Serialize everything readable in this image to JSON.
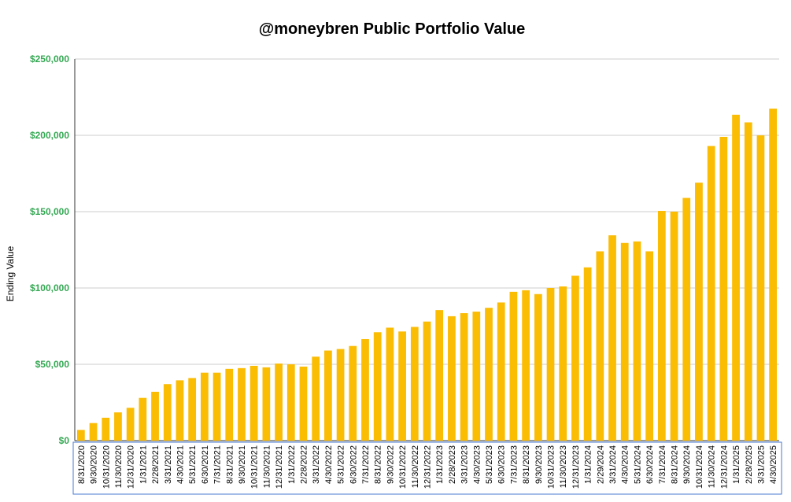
{
  "colors": {
    "bar": "#FBBC04",
    "ytick": "#34A853",
    "grid": "#CCCCCC",
    "axis": "#333333",
    "xbox": "#4A7BD0"
  },
  "chart_data": {
    "type": "bar",
    "title": "@moneybren Public Portfolio Value",
    "xlabel": "",
    "ylabel": "Ending Value",
    "ylim": [
      0,
      250000
    ],
    "yticks": [
      {
        "value": 0,
        "label": "$0"
      },
      {
        "value": 50000,
        "label": "$50,000"
      },
      {
        "value": 100000,
        "label": "$100,000"
      },
      {
        "value": 150000,
        "label": "$150,000"
      },
      {
        "value": 200000,
        "label": "$200,000"
      },
      {
        "value": 250000,
        "label": "$250,000"
      }
    ],
    "grid": true,
    "legend": "none",
    "categories": [
      "8/31/2020",
      "9/30/2020",
      "10/31/2020",
      "11/30/2020",
      "12/31/2020",
      "1/31/2021",
      "2/28/2021",
      "3/31/2021",
      "4/30/2021",
      "5/31/2021",
      "6/30/2021",
      "7/31/2021",
      "8/31/2021",
      "9/30/2021",
      "10/31/2021",
      "11/30/2021",
      "12/31/2021",
      "1/31/2022",
      "2/28/2022",
      "3/31/2022",
      "4/30/2022",
      "5/31/2022",
      "6/30/2022",
      "7/31/2022",
      "8/31/2022",
      "9/30/2022",
      "10/31/2022",
      "11/30/2022",
      "12/31/2022",
      "1/31/2023",
      "2/28/2023",
      "3/31/2023",
      "4/30/2023",
      "5/31/2023",
      "6/30/2023",
      "7/31/2023",
      "8/31/2023",
      "9/30/2023",
      "10/31/2023",
      "11/30/2023",
      "12/31/2023",
      "1/31/2024",
      "2/29/2024",
      "3/31/2024",
      "4/30/2024",
      "5/31/2024",
      "6/30/2024",
      "7/31/2024",
      "8/31/2024",
      "9/30/2024",
      "10/31/2024",
      "11/30/2024",
      "12/31/2024",
      "1/31/2025",
      "2/28/2025",
      "3/31/2025",
      "4/30/2025"
    ],
    "values": [
      7000,
      11500,
      15000,
      18500,
      21500,
      28000,
      32000,
      37000,
      39500,
      41000,
      44500,
      44500,
      47000,
      47500,
      49000,
      48000,
      50500,
      50000,
      48500,
      55000,
      59000,
      60000,
      62000,
      66500,
      71000,
      74000,
      71500,
      74500,
      78000,
      85500,
      81500,
      83500,
      84500,
      87000,
      90500,
      97500,
      98500,
      96000,
      100000,
      101000,
      108000,
      113500,
      124000,
      134500,
      129500,
      130500,
      124000,
      150500,
      150000,
      159000,
      169000,
      193000,
      199000,
      213500,
      208500,
      200000,
      217500
    ]
  }
}
